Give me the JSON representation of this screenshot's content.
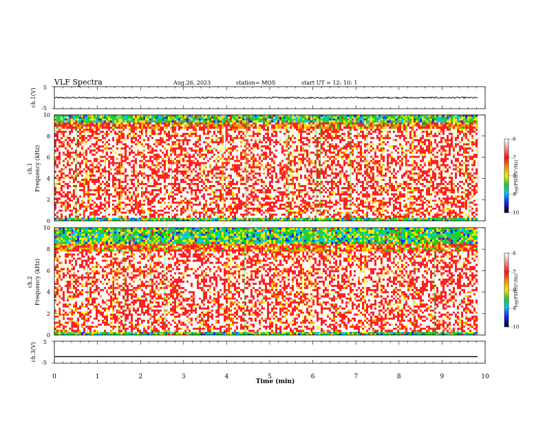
{
  "header": {
    "title": "VLF Spectra",
    "date": "Aug.26, 2023",
    "station": "station= MOS",
    "start_ut": "start  UT =   12: 10: 1"
  },
  "chart_data": {
    "type": "heatmap",
    "x_axis": {
      "label": "Time  (min)",
      "range": [
        0,
        10
      ],
      "ticks": [
        "0",
        "1",
        "2",
        "3",
        "4",
        "5",
        "6",
        "7",
        "8",
        "9",
        "10"
      ],
      "data_end": 9.83
    },
    "panels": [
      {
        "id": "ch1-waveform",
        "type": "line",
        "ylabel": "ch.1(V)",
        "ylim": [
          -5,
          5
        ],
        "y_ticks": [
          "5",
          "-5"
        ],
        "level_volts": 0,
        "noise_volts": 0.35
      },
      {
        "id": "ch1-spectrogram",
        "type": "heatmap",
        "ylabel_top": "ch.1",
        "ylabel": "Frequency  (kHz)",
        "ylim": [
          0,
          10
        ],
        "y_ticks": [
          "0",
          "2",
          "4",
          "6",
          "8",
          "10"
        ],
        "intensity_bands_khz": [
          {
            "from": 0,
            "to": 0.3,
            "level": "low"
          },
          {
            "from": 0.3,
            "to": 2.0,
            "level": "high"
          },
          {
            "from": 2.0,
            "to": 8.7,
            "level": "high"
          },
          {
            "from": 8.7,
            "to": 9.3,
            "level": "medium"
          },
          {
            "from": 9.3,
            "to": 10,
            "level": "low"
          }
        ],
        "colorbar": {
          "label": "log(PSD)(V²/Hz)",
          "range": [
            -10,
            -6
          ],
          "ticks": [
            "-6",
            "-7",
            "-8",
            "-9",
            "-10"
          ]
        }
      },
      {
        "id": "ch2-spectrogram",
        "type": "heatmap",
        "ylabel_top": "ch.2",
        "ylabel": "Frequency  (kHz)",
        "ylim": [
          0,
          10
        ],
        "y_ticks": [
          "0",
          "2",
          "4",
          "6",
          "8",
          "10"
        ],
        "intensity_bands_khz": [
          {
            "from": 0,
            "to": 0.3,
            "level": "low"
          },
          {
            "from": 0.3,
            "to": 3.5,
            "level": "high"
          },
          {
            "from": 3.5,
            "to": 7.8,
            "level": "high"
          },
          {
            "from": 7.8,
            "to": 8.5,
            "level": "medium"
          },
          {
            "from": 8.5,
            "to": 10,
            "level": "low"
          }
        ],
        "colorbar": {
          "label": "log(PSD)(V²/Hz)",
          "range": [
            -10,
            -6
          ],
          "ticks": [
            "-6",
            "-7",
            "-8",
            "-9",
            "-10"
          ]
        }
      },
      {
        "id": "ch3-waveform",
        "type": "line",
        "ylabel": "ch.3(V)",
        "ylim": [
          -5,
          5
        ],
        "y_ticks": [
          "5",
          "-5"
        ],
        "level_volts": -2,
        "noise_volts": 0
      }
    ],
    "colormap": [
      "#ffffff",
      "#ff2020",
      "#ff9a00",
      "#ffe800",
      "#20d020",
      "#00c8ff",
      "#1030ff",
      "#000040"
    ],
    "grid": false,
    "legend": "none"
  }
}
